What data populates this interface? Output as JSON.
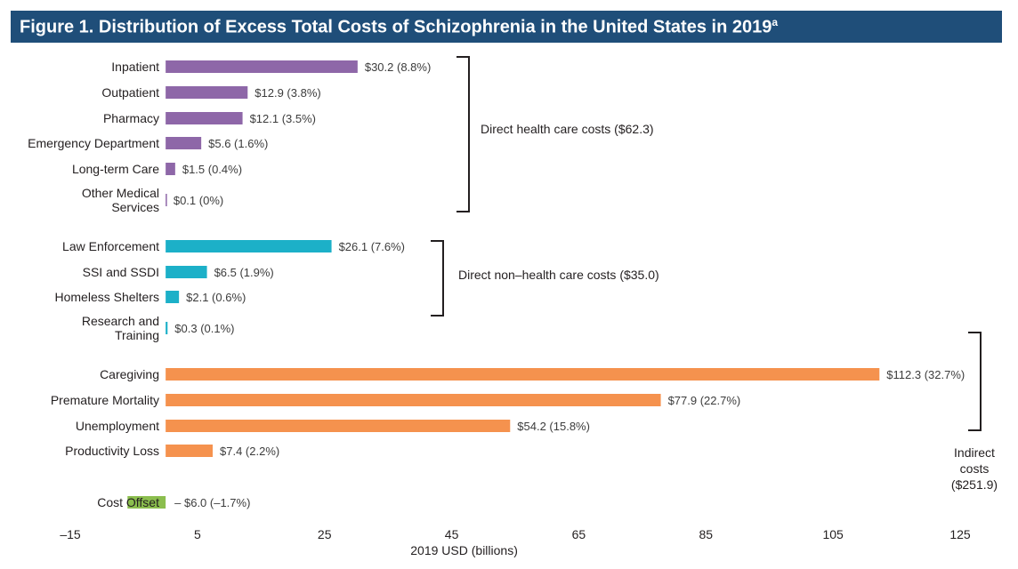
{
  "chart_data": {
    "type": "bar",
    "orientation": "horizontal",
    "title": "Figure 1. Distribution of Excess Total Costs of Schizophrenia in the United States in 2019",
    "title_superscript": "a",
    "xlabel": "2019 USD (billions)",
    "ylabel": "",
    "xlim": [
      -15,
      125
    ],
    "xticks": [
      "–15",
      "5",
      "25",
      "45",
      "65",
      "85",
      "105",
      "125"
    ],
    "xtick_values": [
      -15,
      5,
      25,
      45,
      65,
      85,
      105,
      125
    ],
    "colors": {
      "direct_health": "#8e67a8",
      "direct_non_health": "#1cb0c8",
      "indirect": "#f5924e",
      "offset": "#8bbe4e"
    },
    "bars": [
      {
        "label": "Inpatient",
        "value": 30.2,
        "text": "$30.2 (8.8%)",
        "group": "direct_health"
      },
      {
        "label": "Outpatient",
        "value": 12.9,
        "text": "$12.9 (3.8%)",
        "group": "direct_health"
      },
      {
        "label": "Pharmacy",
        "value": 12.1,
        "text": "$12.1 (3.5%)",
        "group": "direct_health"
      },
      {
        "label": "Emergency Department",
        "value": 5.6,
        "text": "$5.6 (1.6%)",
        "group": "direct_health"
      },
      {
        "label": "Long-term Care",
        "value": 1.5,
        "text": "$1.5 (0.4%)",
        "group": "direct_health"
      },
      {
        "label": "Other Medical Services",
        "value": 0.1,
        "text": "$0.1 (0%)",
        "group": "direct_health"
      },
      {
        "label": "Law Enforcement",
        "value": 26.1,
        "text": "$26.1 (7.6%)",
        "group": "direct_non_health"
      },
      {
        "label": "SSI and SSDI",
        "value": 6.5,
        "text": "$6.5 (1.9%)",
        "group": "direct_non_health"
      },
      {
        "label": "Homeless Shelters",
        "value": 2.1,
        "text": "$2.1 (0.6%)",
        "group": "direct_non_health"
      },
      {
        "label": "Research and Training",
        "value": 0.3,
        "text": "$0.3 (0.1%)",
        "group": "direct_non_health"
      },
      {
        "label": "Caregiving",
        "value": 112.3,
        "text": "$112.3 (32.7%)",
        "group": "indirect"
      },
      {
        "label": "Premature Mortality",
        "value": 77.9,
        "text": "$77.9 (22.7%)",
        "group": "indirect"
      },
      {
        "label": "Unemployment",
        "value": 54.2,
        "text": "$54.2 (15.8%)",
        "group": "indirect"
      },
      {
        "label": "Productivity Loss",
        "value": 7.4,
        "text": "$7.4 (2.2%)",
        "group": "indirect"
      },
      {
        "label": "Cost Offset",
        "value": -6.0,
        "text": "– $6.0 (–1.7%)",
        "group": "offset"
      }
    ],
    "groups": [
      {
        "key": "direct_health",
        "label": "Direct health care costs ($62.3)"
      },
      {
        "key": "direct_non_health",
        "label": "Direct non–health care costs ($35.0)"
      },
      {
        "key": "indirect",
        "label": "Indirect costs ($251.9)"
      }
    ]
  }
}
